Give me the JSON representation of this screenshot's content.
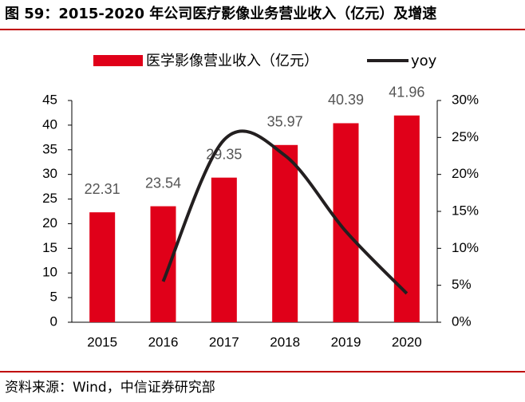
{
  "chart_data": {
    "type": "bar",
    "title": "图 59：2015-2020 年公司医疗影像业务营业收入（亿元）及增速",
    "source": "资料来源：Wind，中信证券研究部",
    "categories": [
      "2015",
      "2016",
      "2017",
      "2018",
      "2019",
      "2020"
    ],
    "series": [
      {
        "name": "医学影像营业收入（亿元）",
        "type": "bar",
        "color": "#e00019",
        "values": [
          22.31,
          23.54,
          29.35,
          35.97,
          40.39,
          41.96
        ]
      },
      {
        "name": "yoy",
        "type": "line",
        "axis": "y2",
        "color": "#231f20",
        "values": [
          null,
          5.51,
          24.68,
          22.56,
          12.29,
          3.89
        ]
      }
    ],
    "ylim": [
      0,
      45
    ],
    "yticks": [
      0,
      5,
      10,
      15,
      20,
      25,
      30,
      35,
      40,
      45
    ],
    "y2lim": [
      0,
      30
    ],
    "y2ticks": [
      {
        "value": 0,
        "label": "0%"
      },
      {
        "value": 5,
        "label": "5%"
      },
      {
        "value": 10,
        "label": "10%"
      },
      {
        "value": 15,
        "label": "15%"
      },
      {
        "value": 20,
        "label": "20%"
      },
      {
        "value": 25,
        "label": "25%"
      },
      {
        "value": 30,
        "label": "30%"
      }
    ],
    "legend": "top"
  }
}
